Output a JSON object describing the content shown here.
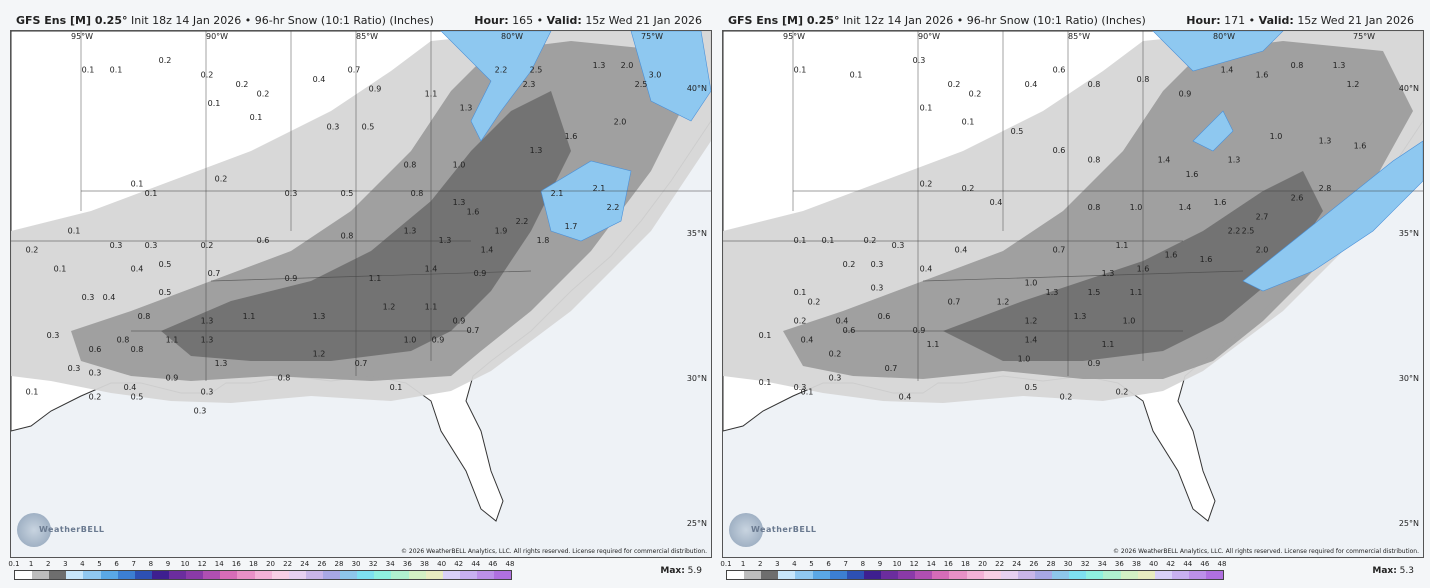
{
  "legend_ticks": [
    "0.1",
    "1",
    "2",
    "3",
    "4",
    "5",
    "6",
    "7",
    "8",
    "9",
    "10",
    "12",
    "14",
    "16",
    "18",
    "20",
    "22",
    "24",
    "26",
    "28",
    "30",
    "32",
    "34",
    "36",
    "38",
    "40",
    "42",
    "44",
    "46",
    "48"
  ],
  "legend_colors": [
    "#ffffff",
    "#bdbdbd",
    "#6e6e6e",
    "#c8e6fa",
    "#90c8f0",
    "#5aa8e6",
    "#3c7fd2",
    "#2d50b4",
    "#3e1f8f",
    "#6b2d9e",
    "#8a3aa8",
    "#b04fb2",
    "#d66cb8",
    "#e890c6",
    "#f2b2d6",
    "#f7cfe4",
    "#e7d0f0",
    "#c9b6e8",
    "#a8a8e4",
    "#8ec6ea",
    "#7ee0f0",
    "#8ff0e0",
    "#b0f0d0",
    "#d2f0c4",
    "#e8ecc0",
    "#d8d0f8",
    "#c8b0f0",
    "#bc90e8",
    "#b070e0"
  ],
  "panels": [
    {
      "title": "GFS Ens [M] 0.25°",
      "init": "Init 18z 14 Jan 2026",
      "product": "96-hr Snow (10:1 Ratio) (Inches)",
      "hour_label": "Hour:",
      "hour": "165",
      "valid_label": "Valid:",
      "valid": "15z Wed 21 Jan 2026",
      "max_label": "Max:",
      "max": "5.9",
      "copyright": "© 2026 WeatherBELL Analytics, LLC. All rights reserved. License required for commercial distribution.",
      "logo": "WeatherBELL",
      "lon_labels": [
        "95°W",
        "90°W",
        "85°W",
        "80°W",
        "75°W"
      ],
      "lat_labels": [
        "40°N",
        "35°N",
        "30°N",
        "25°N"
      ],
      "values": [
        {
          "t": "0.1",
          "x": 0.11,
          "y": 0.05
        },
        {
          "t": "0.1",
          "x": 0.15,
          "y": 0.05
        },
        {
          "t": "0.2",
          "x": 0.22,
          "y": 0.03
        },
        {
          "t": "0.2",
          "x": 0.28,
          "y": 0.06
        },
        {
          "t": "0.2",
          "x": 0.33,
          "y": 0.08
        },
        {
          "t": "0.2",
          "x": 0.36,
          "y": 0.1
        },
        {
          "t": "0.1",
          "x": 0.29,
          "y": 0.12
        },
        {
          "t": "0.1",
          "x": 0.35,
          "y": 0.15
        },
        {
          "t": "0.4",
          "x": 0.44,
          "y": 0.07
        },
        {
          "t": "0.7",
          "x": 0.49,
          "y": 0.05
        },
        {
          "t": "0.9",
          "x": 0.52,
          "y": 0.09
        },
        {
          "t": "1.1",
          "x": 0.6,
          "y": 0.1
        },
        {
          "t": "1.3",
          "x": 0.65,
          "y": 0.13
        },
        {
          "t": "2.2",
          "x": 0.7,
          "y": 0.05
        },
        {
          "t": "2.5",
          "x": 0.75,
          "y": 0.05
        },
        {
          "t": "2.3",
          "x": 0.74,
          "y": 0.08
        },
        {
          "t": "1.3",
          "x": 0.84,
          "y": 0.04
        },
        {
          "t": "2.0",
          "x": 0.88,
          "y": 0.04
        },
        {
          "t": "3.0",
          "x": 0.92,
          "y": 0.06
        },
        {
          "t": "2.5",
          "x": 0.9,
          "y": 0.08
        },
        {
          "t": "0.3",
          "x": 0.46,
          "y": 0.17
        },
        {
          "t": "0.5",
          "x": 0.51,
          "y": 0.17
        },
        {
          "t": "0.8",
          "x": 0.57,
          "y": 0.25
        },
        {
          "t": "1.0",
          "x": 0.64,
          "y": 0.25
        },
        {
          "t": "1.3",
          "x": 0.75,
          "y": 0.22
        },
        {
          "t": "1.6",
          "x": 0.8,
          "y": 0.19
        },
        {
          "t": "2.0",
          "x": 0.87,
          "y": 0.16
        },
        {
          "t": "2.1",
          "x": 0.84,
          "y": 0.3
        },
        {
          "t": "2.1",
          "x": 0.78,
          "y": 0.31
        },
        {
          "t": "2.2",
          "x": 0.73,
          "y": 0.37
        },
        {
          "t": "1.9",
          "x": 0.7,
          "y": 0.39
        },
        {
          "t": "1.7",
          "x": 0.8,
          "y": 0.38
        },
        {
          "t": "2.2",
          "x": 0.86,
          "y": 0.34
        },
        {
          "t": "1.8",
          "x": 0.76,
          "y": 0.41
        },
        {
          "t": "0.2",
          "x": 0.3,
          "y": 0.28
        },
        {
          "t": "0.3",
          "x": 0.4,
          "y": 0.31
        },
        {
          "t": "0.5",
          "x": 0.48,
          "y": 0.31
        },
        {
          "t": "0.8",
          "x": 0.58,
          "y": 0.31
        },
        {
          "t": "1.3",
          "x": 0.64,
          "y": 0.33
        },
        {
          "t": "1.6",
          "x": 0.66,
          "y": 0.35
        },
        {
          "t": "0.1",
          "x": 0.18,
          "y": 0.29
        },
        {
          "t": "0.1",
          "x": 0.2,
          "y": 0.31
        },
        {
          "t": "0.1",
          "x": 0.09,
          "y": 0.39
        },
        {
          "t": "0.2",
          "x": 0.03,
          "y": 0.43
        },
        {
          "t": "0.3",
          "x": 0.15,
          "y": 0.42
        },
        {
          "t": "0.3",
          "x": 0.2,
          "y": 0.42
        },
        {
          "t": "0.2",
          "x": 0.28,
          "y": 0.42
        },
        {
          "t": "0.6",
          "x": 0.36,
          "y": 0.41
        },
        {
          "t": "0.8",
          "x": 0.48,
          "y": 0.4
        },
        {
          "t": "1.3",
          "x": 0.57,
          "y": 0.39
        },
        {
          "t": "1.3",
          "x": 0.62,
          "y": 0.41
        },
        {
          "t": "1.4",
          "x": 0.68,
          "y": 0.43
        },
        {
          "t": "0.1",
          "x": 0.07,
          "y": 0.47
        },
        {
          "t": "0.4",
          "x": 0.18,
          "y": 0.47
        },
        {
          "t": "0.5",
          "x": 0.22,
          "y": 0.46
        },
        {
          "t": "0.7",
          "x": 0.29,
          "y": 0.48
        },
        {
          "t": "0.9",
          "x": 0.4,
          "y": 0.49
        },
        {
          "t": "1.1",
          "x": 0.52,
          "y": 0.49
        },
        {
          "t": "1.4",
          "x": 0.6,
          "y": 0.47
        },
        {
          "t": "0.9",
          "x": 0.67,
          "y": 0.48
        },
        {
          "t": "0.3",
          "x": 0.11,
          "y": 0.53
        },
        {
          "t": "0.4",
          "x": 0.14,
          "y": 0.53
        },
        {
          "t": "0.5",
          "x": 0.22,
          "y": 0.52
        },
        {
          "t": "0.8",
          "x": 0.19,
          "y": 0.57
        },
        {
          "t": "1.3",
          "x": 0.28,
          "y": 0.58
        },
        {
          "t": "1.1",
          "x": 0.34,
          "y": 0.57
        },
        {
          "t": "1.3",
          "x": 0.44,
          "y": 0.57
        },
        {
          "t": "1.2",
          "x": 0.54,
          "y": 0.55
        },
        {
          "t": "1.1",
          "x": 0.6,
          "y": 0.55
        },
        {
          "t": "0.9",
          "x": 0.64,
          "y": 0.58
        },
        {
          "t": "0.7",
          "x": 0.66,
          "y": 0.6
        },
        {
          "t": "0.3",
          "x": 0.06,
          "y": 0.61
        },
        {
          "t": "0.8",
          "x": 0.16,
          "y": 0.62
        },
        {
          "t": "1.1",
          "x": 0.23,
          "y": 0.62
        },
        {
          "t": "1.3",
          "x": 0.28,
          "y": 0.62
        },
        {
          "t": "1.0",
          "x": 0.57,
          "y": 0.62
        },
        {
          "t": "0.9",
          "x": 0.61,
          "y": 0.62
        },
        {
          "t": "0.6",
          "x": 0.12,
          "y": 0.64
        },
        {
          "t": "0.8",
          "x": 0.18,
          "y": 0.64
        },
        {
          "t": "1.3",
          "x": 0.3,
          "y": 0.67
        },
        {
          "t": "1.2",
          "x": 0.44,
          "y": 0.65
        },
        {
          "t": "0.7",
          "x": 0.5,
          "y": 0.67
        },
        {
          "t": "0.3",
          "x": 0.09,
          "y": 0.68
        },
        {
          "t": "0.3",
          "x": 0.12,
          "y": 0.69
        },
        {
          "t": "0.9",
          "x": 0.23,
          "y": 0.7
        },
        {
          "t": "0.8",
          "x": 0.39,
          "y": 0.7
        },
        {
          "t": "0.1",
          "x": 0.03,
          "y": 0.73
        },
        {
          "t": "0.2",
          "x": 0.12,
          "y": 0.74
        },
        {
          "t": "0.4",
          "x": 0.17,
          "y": 0.72
        },
        {
          "t": "0.5",
          "x": 0.18,
          "y": 0.74
        },
        {
          "t": "0.3",
          "x": 0.28,
          "y": 0.73
        },
        {
          "t": "0.1",
          "x": 0.55,
          "y": 0.72
        },
        {
          "t": "0.3",
          "x": 0.27,
          "y": 0.77
        }
      ]
    },
    {
      "title": "GFS Ens [M] 0.25°",
      "init": "Init 12z 14 Jan 2026",
      "product": "96-hr Snow (10:1 Ratio) (Inches)",
      "hour_label": "Hour:",
      "hour": "171",
      "valid_label": "Valid:",
      "valid": "15z Wed 21 Jan 2026",
      "max_label": "Max:",
      "max": "5.3",
      "copyright": "© 2026 WeatherBELL Analytics, LLC. All rights reserved. License required for commercial distribution.",
      "logo": "WeatherBELL",
      "lon_labels": [
        "95°W",
        "90°W",
        "85°W",
        "80°W",
        "75°W"
      ],
      "lat_labels": [
        "40°N",
        "35°N",
        "30°N",
        "25°N"
      ],
      "values": [
        {
          "t": "0.1",
          "x": 0.11,
          "y": 0.05
        },
        {
          "t": "0.1",
          "x": 0.19,
          "y": 0.06
        },
        {
          "t": "0.3",
          "x": 0.28,
          "y": 0.03
        },
        {
          "t": "0.2",
          "x": 0.33,
          "y": 0.08
        },
        {
          "t": "0.2",
          "x": 0.36,
          "y": 0.1
        },
        {
          "t": "0.1",
          "x": 0.29,
          "y": 0.13
        },
        {
          "t": "0.1",
          "x": 0.35,
          "y": 0.16
        },
        {
          "t": "0.4",
          "x": 0.44,
          "y": 0.08
        },
        {
          "t": "0.6",
          "x": 0.48,
          "y": 0.05
        },
        {
          "t": "0.8",
          "x": 0.53,
          "y": 0.08
        },
        {
          "t": "0.8",
          "x": 0.6,
          "y": 0.07
        },
        {
          "t": "0.9",
          "x": 0.66,
          "y": 0.1
        },
        {
          "t": "1.4",
          "x": 0.72,
          "y": 0.05
        },
        {
          "t": "1.6",
          "x": 0.77,
          "y": 0.06
        },
        {
          "t": "0.8",
          "x": 0.82,
          "y": 0.04
        },
        {
          "t": "1.3",
          "x": 0.88,
          "y": 0.04
        },
        {
          "t": "1.2",
          "x": 0.9,
          "y": 0.08
        },
        {
          "t": "0.5",
          "x": 0.42,
          "y": 0.18
        },
        {
          "t": "0.6",
          "x": 0.48,
          "y": 0.22
        },
        {
          "t": "0.8",
          "x": 0.53,
          "y": 0.24
        },
        {
          "t": "1.4",
          "x": 0.63,
          "y": 0.24
        },
        {
          "t": "1.6",
          "x": 0.67,
          "y": 0.27
        },
        {
          "t": "1.3",
          "x": 0.73,
          "y": 0.24
        },
        {
          "t": "1.0",
          "x": 0.79,
          "y": 0.19
        },
        {
          "t": "1.3",
          "x": 0.86,
          "y": 0.2
        },
        {
          "t": "1.6",
          "x": 0.91,
          "y": 0.21
        },
        {
          "t": "2.8",
          "x": 0.86,
          "y": 0.3
        },
        {
          "t": "2.6",
          "x": 0.82,
          "y": 0.32
        },
        {
          "t": "2.7",
          "x": 0.77,
          "y": 0.36
        },
        {
          "t": "2.2",
          "x": 0.73,
          "y": 0.39
        },
        {
          "t": "2.5",
          "x": 0.75,
          "y": 0.39
        },
        {
          "t": "2.0",
          "x": 0.77,
          "y": 0.43
        },
        {
          "t": "0.2",
          "x": 0.29,
          "y": 0.29
        },
        {
          "t": "0.2",
          "x": 0.35,
          "y": 0.3
        },
        {
          "t": "0.4",
          "x": 0.39,
          "y": 0.33
        },
        {
          "t": "0.8",
          "x": 0.53,
          "y": 0.34
        },
        {
          "t": "1.0",
          "x": 0.59,
          "y": 0.34
        },
        {
          "t": "1.4",
          "x": 0.66,
          "y": 0.34
        },
        {
          "t": "1.6",
          "x": 0.71,
          "y": 0.33
        },
        {
          "t": "0.1",
          "x": 0.11,
          "y": 0.41
        },
        {
          "t": "0.1",
          "x": 0.15,
          "y": 0.41
        },
        {
          "t": "0.2",
          "x": 0.21,
          "y": 0.41
        },
        {
          "t": "0.3",
          "x": 0.25,
          "y": 0.42
        },
        {
          "t": "0.4",
          "x": 0.34,
          "y": 0.43
        },
        {
          "t": "0.7",
          "x": 0.48,
          "y": 0.43
        },
        {
          "t": "1.1",
          "x": 0.57,
          "y": 0.42
        },
        {
          "t": "1.6",
          "x": 0.64,
          "y": 0.44
        },
        {
          "t": "1.6",
          "x": 0.69,
          "y": 0.45
        },
        {
          "t": "0.2",
          "x": 0.18,
          "y": 0.46
        },
        {
          "t": "0.3",
          "x": 0.22,
          "y": 0.46
        },
        {
          "t": "0.4",
          "x": 0.29,
          "y": 0.47
        },
        {
          "t": "1.0",
          "x": 0.44,
          "y": 0.5
        },
        {
          "t": "1.3",
          "x": 0.55,
          "y": 0.48
        },
        {
          "t": "1.6",
          "x": 0.6,
          "y": 0.47
        },
        {
          "t": "0.1",
          "x": 0.11,
          "y": 0.52
        },
        {
          "t": "0.2",
          "x": 0.13,
          "y": 0.54
        },
        {
          "t": "0.3",
          "x": 0.22,
          "y": 0.51
        },
        {
          "t": "0.6",
          "x": 0.23,
          "y": 0.57
        },
        {
          "t": "0.7",
          "x": 0.33,
          "y": 0.54
        },
        {
          "t": "1.2",
          "x": 0.4,
          "y": 0.54
        },
        {
          "t": "1.3",
          "x": 0.47,
          "y": 0.52
        },
        {
          "t": "1.5",
          "x": 0.53,
          "y": 0.52
        },
        {
          "t": "1.1",
          "x": 0.59,
          "y": 0.52
        },
        {
          "t": "0.2",
          "x": 0.11,
          "y": 0.58
        },
        {
          "t": "0.4",
          "x": 0.17,
          "y": 0.58
        },
        {
          "t": "0.9",
          "x": 0.28,
          "y": 0.6
        },
        {
          "t": "1.2",
          "x": 0.44,
          "y": 0.58
        },
        {
          "t": "1.3",
          "x": 0.51,
          "y": 0.57
        },
        {
          "t": "1.0",
          "x": 0.58,
          "y": 0.58
        },
        {
          "t": "0.1",
          "x": 0.06,
          "y": 0.61
        },
        {
          "t": "0.4",
          "x": 0.12,
          "y": 0.62
        },
        {
          "t": "0.6",
          "x": 0.18,
          "y": 0.6
        },
        {
          "t": "1.1",
          "x": 0.3,
          "y": 0.63
        },
        {
          "t": "1.4",
          "x": 0.44,
          "y": 0.62
        },
        {
          "t": "1.1",
          "x": 0.55,
          "y": 0.63
        },
        {
          "t": "0.2",
          "x": 0.16,
          "y": 0.65
        },
        {
          "t": "0.7",
          "x": 0.24,
          "y": 0.68
        },
        {
          "t": "1.0",
          "x": 0.43,
          "y": 0.66
        },
        {
          "t": "0.9",
          "x": 0.53,
          "y": 0.67
        },
        {
          "t": "0.1",
          "x": 0.06,
          "y": 0.71
        },
        {
          "t": "0.3",
          "x": 0.16,
          "y": 0.7
        },
        {
          "t": "0.3",
          "x": 0.11,
          "y": 0.72
        },
        {
          "t": "0.1",
          "x": 0.12,
          "y": 0.73
        },
        {
          "t": "0.4",
          "x": 0.26,
          "y": 0.74
        },
        {
          "t": "0.5",
          "x": 0.44,
          "y": 0.72
        },
        {
          "t": "0.2",
          "x": 0.49,
          "y": 0.74
        },
        {
          "t": "0.2",
          "x": 0.57,
          "y": 0.73
        }
      ]
    }
  ]
}
